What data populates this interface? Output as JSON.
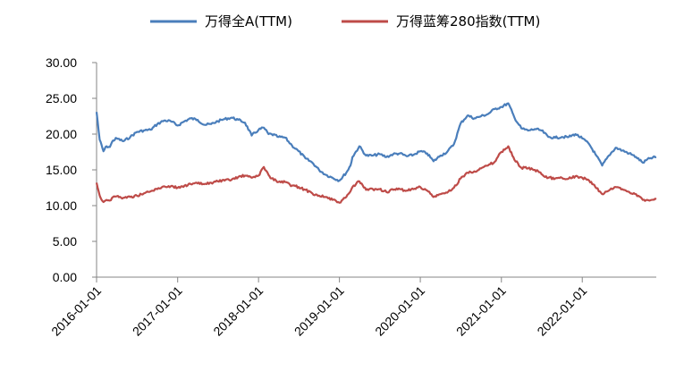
{
  "chart_data": {
    "type": "line",
    "title": "",
    "xlabel": "",
    "ylabel": "",
    "ylim": [
      0,
      30
    ],
    "yticks": [
      "0.00",
      "5.00",
      "10.00",
      "15.00",
      "20.00",
      "25.00",
      "30.00"
    ],
    "xlim": [
      "2016-01-01",
      "2022-12-01"
    ],
    "xticks": [
      "2016-01-01",
      "2017-01-01",
      "2018-01-01",
      "2019-01-01",
      "2020-01-01",
      "2021-01-01",
      "2022-01-01"
    ],
    "grid": false,
    "legend": "top",
    "series": [
      {
        "name": "万得全A(TTM)",
        "color": "#4a7ebb",
        "points": [
          [
            "2016-01-01",
            23.1
          ],
          [
            "2016-01-15",
            19.2
          ],
          [
            "2016-02-01",
            17.6
          ],
          [
            "2016-02-15",
            18.3
          ],
          [
            "2016-03-01",
            18.2
          ],
          [
            "2016-03-15",
            19.1
          ],
          [
            "2016-04-01",
            19.4
          ],
          [
            "2016-05-01",
            19.0
          ],
          [
            "2016-06-01",
            19.6
          ],
          [
            "2016-07-01",
            20.3
          ],
          [
            "2016-08-01",
            20.5
          ],
          [
            "2016-09-01",
            20.6
          ],
          [
            "2016-10-01",
            21.4
          ],
          [
            "2016-11-01",
            21.9
          ],
          [
            "2016-12-01",
            21.8
          ],
          [
            "2017-01-01",
            21.2
          ],
          [
            "2017-02-01",
            21.8
          ],
          [
            "2017-03-01",
            22.2
          ],
          [
            "2017-04-01",
            22.0
          ],
          [
            "2017-05-01",
            21.3
          ],
          [
            "2017-06-01",
            21.4
          ],
          [
            "2017-07-01",
            21.8
          ],
          [
            "2017-08-01",
            22.1
          ],
          [
            "2017-09-01",
            22.3
          ],
          [
            "2017-10-01",
            22.0
          ],
          [
            "2017-11-01",
            21.6
          ],
          [
            "2017-12-01",
            19.8
          ],
          [
            "2018-01-01",
            20.6
          ],
          [
            "2018-01-25",
            20.9
          ],
          [
            "2018-02-15",
            20.0
          ],
          [
            "2018-03-01",
            20.0
          ],
          [
            "2018-04-01",
            19.6
          ],
          [
            "2018-05-01",
            19.5
          ],
          [
            "2018-06-01",
            18.4
          ],
          [
            "2018-07-01",
            17.6
          ],
          [
            "2018-08-01",
            16.6
          ],
          [
            "2018-09-01",
            16.0
          ],
          [
            "2018-10-01",
            15.0
          ],
          [
            "2018-11-01",
            14.3
          ],
          [
            "2018-12-01",
            13.9
          ],
          [
            "2019-01-01",
            13.5
          ],
          [
            "2019-02-01",
            14.6
          ],
          [
            "2019-02-20",
            15.6
          ],
          [
            "2019-03-01",
            16.8
          ],
          [
            "2019-04-01",
            18.3
          ],
          [
            "2019-05-01",
            17.0
          ],
          [
            "2019-06-01",
            17.0
          ],
          [
            "2019-07-01",
            17.2
          ],
          [
            "2019-08-01",
            16.8
          ],
          [
            "2019-09-01",
            17.2
          ],
          [
            "2019-10-01",
            17.3
          ],
          [
            "2019-11-01",
            16.9
          ],
          [
            "2019-12-01",
            17.1
          ],
          [
            "2020-01-01",
            17.6
          ],
          [
            "2020-02-01",
            17.3
          ],
          [
            "2020-03-01",
            16.2
          ],
          [
            "2020-04-01",
            17.0
          ],
          [
            "2020-05-01",
            17.5
          ],
          [
            "2020-06-01",
            18.6
          ],
          [
            "2020-07-01",
            21.5
          ],
          [
            "2020-08-01",
            22.6
          ],
          [
            "2020-09-01",
            22.2
          ],
          [
            "2020-10-01",
            22.5
          ],
          [
            "2020-11-01",
            22.8
          ],
          [
            "2020-12-01",
            23.5
          ],
          [
            "2021-01-01",
            23.8
          ],
          [
            "2021-02-01",
            24.3
          ],
          [
            "2021-03-01",
            22.3
          ],
          [
            "2021-04-01",
            20.8
          ],
          [
            "2021-05-01",
            20.5
          ],
          [
            "2021-06-01",
            20.7
          ],
          [
            "2021-07-01",
            20.5
          ],
          [
            "2021-08-01",
            19.6
          ],
          [
            "2021-09-01",
            19.5
          ],
          [
            "2021-10-01",
            19.6
          ],
          [
            "2021-11-01",
            19.6
          ],
          [
            "2021-12-01",
            20.0
          ],
          [
            "2022-01-01",
            19.4
          ],
          [
            "2022-02-01",
            18.6
          ],
          [
            "2022-03-01",
            17.2
          ],
          [
            "2022-04-01",
            15.6
          ],
          [
            "2022-05-01",
            17.0
          ],
          [
            "2022-06-01",
            18.1
          ],
          [
            "2022-07-01",
            17.7
          ],
          [
            "2022-08-01",
            17.3
          ],
          [
            "2022-09-01",
            16.8
          ],
          [
            "2022-10-01",
            16.0
          ],
          [
            "2022-11-01",
            16.6
          ],
          [
            "2022-12-01",
            16.8
          ]
        ]
      },
      {
        "name": "万得蓝筹280指数(TTM)",
        "color": "#be4b48",
        "points": [
          [
            "2016-01-01",
            13.2
          ],
          [
            "2016-01-15",
            11.4
          ],
          [
            "2016-02-01",
            10.5
          ],
          [
            "2016-02-15",
            10.8
          ],
          [
            "2016-03-01",
            10.7
          ],
          [
            "2016-03-15",
            11.2
          ],
          [
            "2016-04-01",
            11.3
          ],
          [
            "2016-05-01",
            11.1
          ],
          [
            "2016-06-01",
            11.2
          ],
          [
            "2016-07-01",
            11.4
          ],
          [
            "2016-08-01",
            11.7
          ],
          [
            "2016-09-01",
            12.0
          ],
          [
            "2016-10-01",
            12.3
          ],
          [
            "2016-11-01",
            12.7
          ],
          [
            "2016-12-01",
            12.7
          ],
          [
            "2017-01-01",
            12.5
          ],
          [
            "2017-02-01",
            12.8
          ],
          [
            "2017-03-01",
            13.0
          ],
          [
            "2017-04-01",
            13.1
          ],
          [
            "2017-05-01",
            13.0
          ],
          [
            "2017-06-01",
            13.2
          ],
          [
            "2017-07-01",
            13.4
          ],
          [
            "2017-08-01",
            13.5
          ],
          [
            "2017-09-01",
            13.6
          ],
          [
            "2017-10-01",
            14.0
          ],
          [
            "2017-11-01",
            14.2
          ],
          [
            "2017-12-01",
            13.9
          ],
          [
            "2018-01-01",
            14.2
          ],
          [
            "2018-01-25",
            15.4
          ],
          [
            "2018-02-15",
            14.3
          ],
          [
            "2018-03-01",
            13.8
          ],
          [
            "2018-04-01",
            13.3
          ],
          [
            "2018-05-01",
            13.3
          ],
          [
            "2018-06-01",
            12.8
          ],
          [
            "2018-07-01",
            12.6
          ],
          [
            "2018-08-01",
            12.2
          ],
          [
            "2018-09-01",
            11.7
          ],
          [
            "2018-10-01",
            11.4
          ],
          [
            "2018-11-01",
            11.2
          ],
          [
            "2018-12-01",
            10.8
          ],
          [
            "2019-01-01",
            10.4
          ],
          [
            "2019-02-01",
            11.2
          ],
          [
            "2019-02-20",
            12.0
          ],
          [
            "2019-03-01",
            12.6
          ],
          [
            "2019-04-01",
            13.4
          ],
          [
            "2019-05-01",
            12.2
          ],
          [
            "2019-06-01",
            12.3
          ],
          [
            "2019-07-01",
            12.3
          ],
          [
            "2019-08-01",
            11.9
          ],
          [
            "2019-09-01",
            12.2
          ],
          [
            "2019-10-01",
            12.3
          ],
          [
            "2019-11-01",
            12.1
          ],
          [
            "2019-12-01",
            12.3
          ],
          [
            "2020-01-01",
            12.6
          ],
          [
            "2020-02-01",
            12.1
          ],
          [
            "2020-03-01",
            11.2
          ],
          [
            "2020-04-01",
            11.6
          ],
          [
            "2020-05-01",
            11.8
          ],
          [
            "2020-06-01",
            12.5
          ],
          [
            "2020-07-01",
            13.8
          ],
          [
            "2020-08-01",
            14.6
          ],
          [
            "2020-09-01",
            14.8
          ],
          [
            "2020-10-01",
            15.2
          ],
          [
            "2020-11-01",
            15.6
          ],
          [
            "2020-12-01",
            16.1
          ],
          [
            "2021-01-01",
            17.5
          ],
          [
            "2021-02-01",
            18.3
          ],
          [
            "2021-03-01",
            16.4
          ],
          [
            "2021-04-01",
            15.3
          ],
          [
            "2021-05-01",
            15.2
          ],
          [
            "2021-06-01",
            15.0
          ],
          [
            "2021-07-01",
            14.4
          ],
          [
            "2021-08-01",
            13.9
          ],
          [
            "2021-09-01",
            13.8
          ],
          [
            "2021-10-01",
            13.9
          ],
          [
            "2021-11-01",
            13.8
          ],
          [
            "2021-12-01",
            14.1
          ],
          [
            "2022-01-01",
            13.9
          ],
          [
            "2022-02-01",
            13.5
          ],
          [
            "2022-03-01",
            12.6
          ],
          [
            "2022-04-01",
            11.6
          ],
          [
            "2022-05-01",
            12.1
          ],
          [
            "2022-06-01",
            12.6
          ],
          [
            "2022-07-01",
            12.3
          ],
          [
            "2022-08-01",
            11.9
          ],
          [
            "2022-09-01",
            11.6
          ],
          [
            "2022-10-01",
            10.8
          ],
          [
            "2022-11-01",
            10.7
          ],
          [
            "2022-12-01",
            10.9
          ]
        ]
      }
    ]
  }
}
